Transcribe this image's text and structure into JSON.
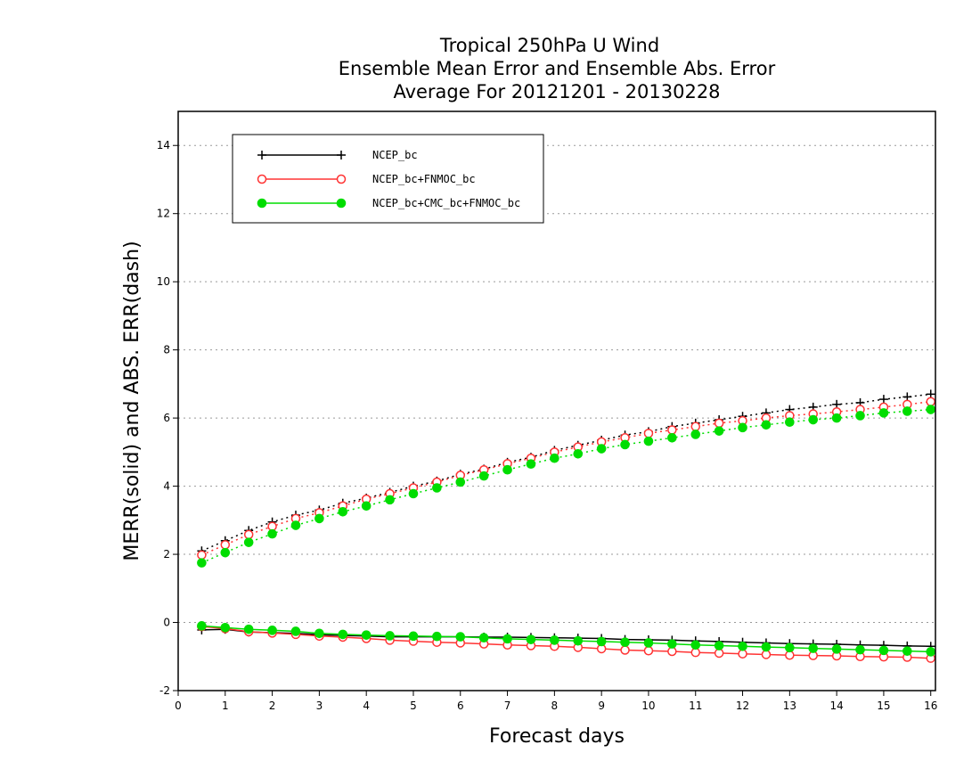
{
  "chart_data": {
    "type": "line",
    "title_lines": [
      "Tropical 250hPa U Wind",
      "Ensemble Mean Error and Ensemble Abs. Error",
      "Average For 20121201 - 20130228"
    ],
    "xlabel": "Forecast days",
    "ylabel": "MERR(solid) and ABS. ERR(dash)",
    "xlim": [
      0,
      16.1
    ],
    "ylim": [
      -2,
      15
    ],
    "xticks": [
      "0",
      "1",
      "2",
      "3",
      "4",
      "5",
      "6",
      "7",
      "8",
      "9",
      "10",
      "11",
      "12",
      "13",
      "14",
      "15",
      "16"
    ],
    "yticks": [
      "-2",
      "0",
      "2",
      "4",
      "6",
      "8",
      "10",
      "12",
      "14"
    ],
    "grid": true,
    "legend_position": "top-left",
    "x": [
      0.5,
      1,
      1.5,
      2,
      2.5,
      3,
      3.5,
      4,
      4.5,
      5,
      5.5,
      6,
      6.5,
      7,
      7.5,
      8,
      8.5,
      9,
      9.5,
      10,
      10.5,
      11,
      11.5,
      12,
      12.5,
      13,
      13.5,
      14,
      14.5,
      15,
      15.5,
      16
    ],
    "series": [
      {
        "name": "NCEP_bc",
        "color": "#000000",
        "marker": "plus",
        "merr": [
          -0.22,
          -0.2,
          -0.28,
          -0.3,
          -0.32,
          -0.36,
          -0.38,
          -0.4,
          -0.42,
          -0.42,
          -0.42,
          -0.42,
          -0.43,
          -0.43,
          -0.44,
          -0.45,
          -0.46,
          -0.47,
          -0.5,
          -0.51,
          -0.52,
          -0.54,
          -0.56,
          -0.58,
          -0.6,
          -0.62,
          -0.63,
          -0.64,
          -0.66,
          -0.67,
          -0.69,
          -0.7
        ],
        "abs_err": [
          2.1,
          2.4,
          2.7,
          2.95,
          3.15,
          3.3,
          3.5,
          3.65,
          3.82,
          4.0,
          4.15,
          4.35,
          4.5,
          4.7,
          4.85,
          5.05,
          5.2,
          5.35,
          5.5,
          5.6,
          5.75,
          5.85,
          5.95,
          6.05,
          6.15,
          6.25,
          6.32,
          6.4,
          6.45,
          6.55,
          6.62,
          6.7
        ]
      },
      {
        "name": "NCEP_bc+FNMOC_bc",
        "color": "#ff3333",
        "marker": "open-circle",
        "merr": [
          -0.12,
          -0.18,
          -0.27,
          -0.31,
          -0.35,
          -0.4,
          -0.43,
          -0.47,
          -0.52,
          -0.55,
          -0.58,
          -0.6,
          -0.63,
          -0.66,
          -0.68,
          -0.7,
          -0.73,
          -0.77,
          -0.81,
          -0.83,
          -0.85,
          -0.88,
          -0.9,
          -0.92,
          -0.94,
          -0.96,
          -0.97,
          -0.98,
          -1.0,
          -1.01,
          -1.02,
          -1.05
        ],
        "abs_err": [
          1.98,
          2.28,
          2.58,
          2.82,
          3.05,
          3.22,
          3.42,
          3.62,
          3.78,
          3.95,
          4.12,
          4.32,
          4.48,
          4.66,
          4.82,
          5.0,
          5.15,
          5.3,
          5.42,
          5.55,
          5.65,
          5.75,
          5.85,
          5.92,
          6.0,
          6.07,
          6.12,
          6.18,
          6.25,
          6.32,
          6.4,
          6.48
        ]
      },
      {
        "name": "NCEP_bc+CMC_bc+FNMOC_bc",
        "color": "#00dd00",
        "marker": "filled-circle",
        "merr": [
          -0.1,
          -0.15,
          -0.2,
          -0.23,
          -0.26,
          -0.32,
          -0.35,
          -0.37,
          -0.39,
          -0.4,
          -0.41,
          -0.42,
          -0.45,
          -0.48,
          -0.5,
          -0.52,
          -0.54,
          -0.56,
          -0.58,
          -0.6,
          -0.63,
          -0.66,
          -0.68,
          -0.7,
          -0.72,
          -0.74,
          -0.76,
          -0.78,
          -0.8,
          -0.82,
          -0.84,
          -0.86
        ],
        "abs_err": [
          1.75,
          2.05,
          2.35,
          2.6,
          2.85,
          3.05,
          3.25,
          3.42,
          3.6,
          3.78,
          3.95,
          4.12,
          4.3,
          4.48,
          4.65,
          4.82,
          4.95,
          5.1,
          5.22,
          5.32,
          5.42,
          5.52,
          5.62,
          5.72,
          5.8,
          5.88,
          5.95,
          6.0,
          6.07,
          6.15,
          6.2,
          6.25
        ]
      }
    ]
  }
}
